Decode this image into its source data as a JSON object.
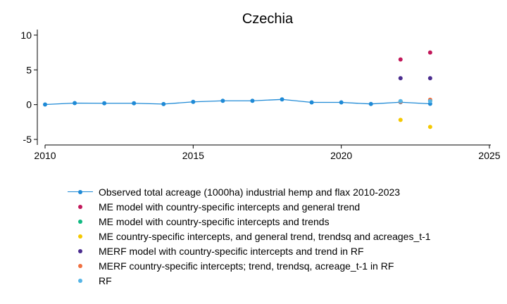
{
  "chart_data": {
    "type": "scatter",
    "title": "Czechia",
    "xlabel": "",
    "ylabel": "",
    "xlim": [
      2010,
      2025
    ],
    "ylim": [
      -5.8,
      10.8
    ],
    "xticks": [
      2010,
      2015,
      2020,
      2025
    ],
    "yticks": [
      -5,
      0,
      5,
      10
    ],
    "xtick_labels": [
      "2010",
      "2015",
      "2020",
      "2025"
    ],
    "ytick_labels": [
      "-5",
      "0",
      "5",
      "10"
    ],
    "grid": false,
    "legend_position": "bottom",
    "series": [
      {
        "name": "Observed total acreage (1000ha) industrial hemp and flax 2010-2023",
        "style": "line-marker",
        "color": "#1f8ad6",
        "x": [
          2010,
          2011,
          2012,
          2013,
          2014,
          2015,
          2016,
          2017,
          2018,
          2019,
          2020,
          2021,
          2022,
          2023
        ],
        "y": [
          0.02,
          0.22,
          0.2,
          0.2,
          0.08,
          0.4,
          0.55,
          0.55,
          0.75,
          0.32,
          0.32,
          0.1,
          0.35,
          0.12
        ]
      },
      {
        "name": "ME model with country-specific intercepts and general trend",
        "style": "marker",
        "color": "#c2185b",
        "x": [
          2022,
          2023
        ],
        "y": [
          6.5,
          7.5
        ]
      },
      {
        "name": "ME model with country-specific intercepts and trends",
        "style": "marker",
        "color": "#10b981",
        "x": [
          2022,
          2023
        ],
        "y": [
          0.45,
          0.55
        ]
      },
      {
        "name": "ME country-specific intercepts, and general trend, trendsq and acreages_t-1",
        "style": "marker",
        "color": "#f5c800",
        "x": [
          2022,
          2023
        ],
        "y": [
          -2.2,
          -3.2
        ]
      },
      {
        "name": "MERF model with country-specific intercepts and trend in RF",
        "style": "marker",
        "color": "#4b2d8f",
        "x": [
          2022,
          2023
        ],
        "y": [
          3.8,
          3.8
        ]
      },
      {
        "name": "MERF country-specific intercepts; trend, trendsq, acreage_t-1 in RF",
        "style": "marker",
        "color": "#f07040",
        "x": [
          2022,
          2023
        ],
        "y": [
          0.4,
          0.7
        ]
      },
      {
        "name": "RF",
        "style": "marker",
        "color": "#55b4e6",
        "x": [
          2022,
          2023
        ],
        "y": [
          0.5,
          0.5
        ]
      }
    ]
  }
}
